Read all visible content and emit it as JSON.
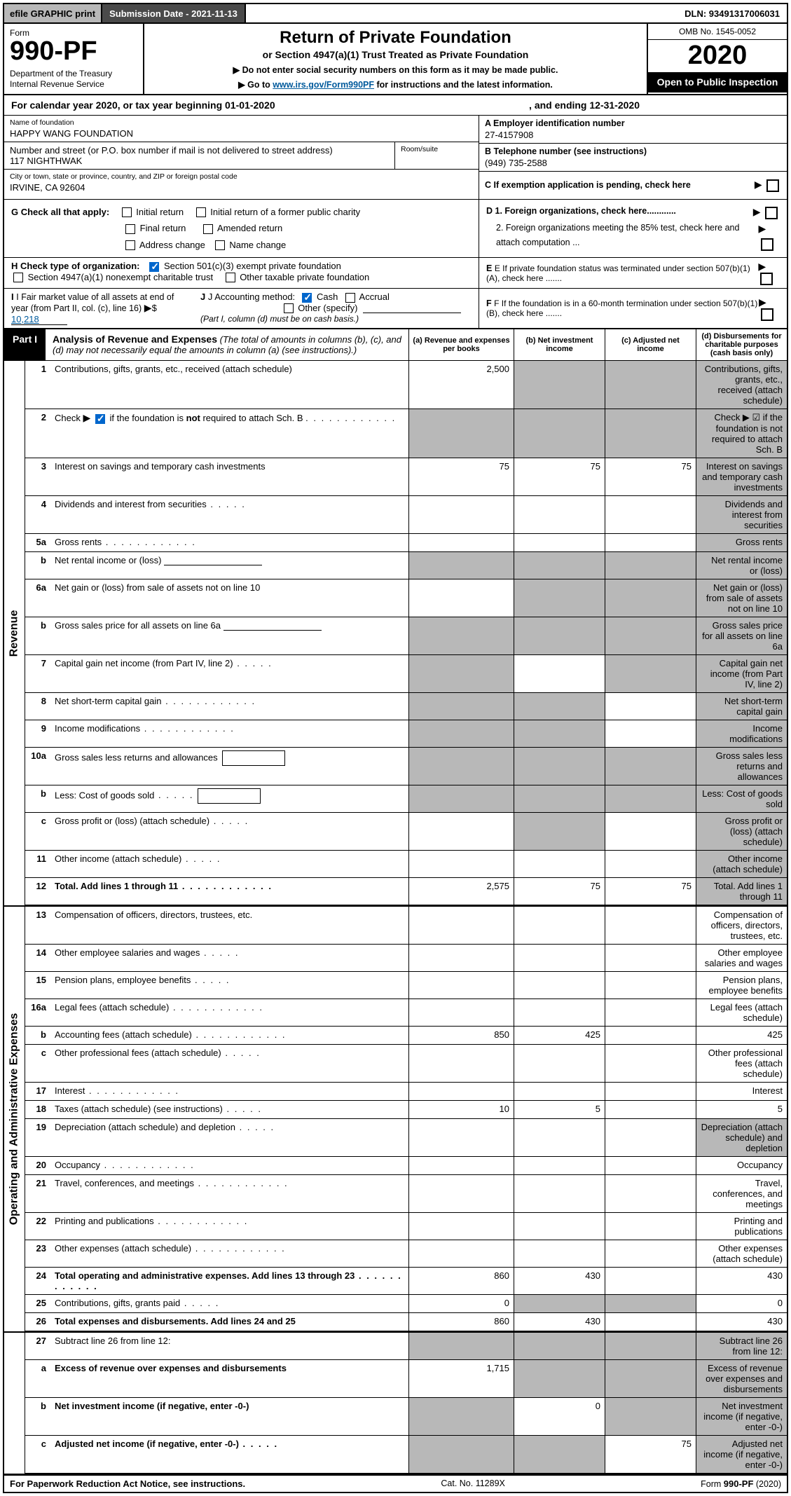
{
  "topbar": {
    "efile": "efile GRAPHIC print",
    "submission": "Submission Date - 2021-11-13",
    "dln": "DLN: 93491317006031"
  },
  "header": {
    "form_label": "Form",
    "form_num": "990-PF",
    "dept": "Department of the Treasury\nInternal Revenue Service",
    "title": "Return of Private Foundation",
    "subtitle": "or Section 4947(a)(1) Trust Treated as Private Foundation",
    "note1": "▶ Do not enter social security numbers on this form as it may be made public.",
    "note2_pre": "▶ Go to ",
    "note2_link": "www.irs.gov/Form990PF",
    "note2_post": " for instructions and the latest information.",
    "omb": "OMB No. 1545-0052",
    "year": "2020",
    "open": "Open to Public Inspection"
  },
  "calendar": {
    "pre": "For calendar year 2020, or tax year beginning 01-01-2020",
    "mid": ", and ending 12-31-2020"
  },
  "entity": {
    "name_label": "Name of foundation",
    "name": "HAPPY WANG FOUNDATION",
    "addr_label": "Number and street (or P.O. box number if mail is not delivered to street address)",
    "addr": "117 NIGHTHWAK",
    "room_label": "Room/suite",
    "city_label": "City or town, state or province, country, and ZIP or foreign postal code",
    "city": "IRVINE, CA  92604",
    "a_label": "A Employer identification number",
    "a_val": "27-4157908",
    "b_label": "B Telephone number (see instructions)",
    "b_val": "(949) 735-2588",
    "c_label": "C If exemption application is pending, check here"
  },
  "checks": {
    "g_label": "G Check all that apply:",
    "g_opts": [
      "Initial return",
      "Initial return of a former public charity",
      "Final return",
      "Amended return",
      "Address change",
      "Name change"
    ],
    "h_label": "H Check type of organization:",
    "h_opts": [
      "Section 501(c)(3) exempt private foundation",
      "Section 4947(a)(1) nonexempt charitable trust",
      "Other taxable private foundation"
    ],
    "i_label": "I Fair market value of all assets at end of year (from Part II, col. (c), line 16)",
    "i_val": "10,218",
    "j_label": "J Accounting method:",
    "j_opts": [
      "Cash",
      "Accrual",
      "Other (specify)"
    ],
    "j_note": "(Part I, column (d) must be on cash basis.)",
    "d1": "D 1. Foreign organizations, check here............",
    "d2": "2. Foreign organizations meeting the 85% test, check here and attach computation ...",
    "e": "E  If private foundation status was terminated under section 507(b)(1)(A), check here .......",
    "f": "F  If the foundation is in a 60-month termination under section 507(b)(1)(B), check here .......",
    "arrow": "▶"
  },
  "part1": {
    "badge": "Part I",
    "title": "Analysis of Revenue and Expenses",
    "title_note": " (The total of amounts in columns (b), (c), and (d) may not necessarily equal the amounts in column (a) (see instructions).)",
    "cols": {
      "a": "(a)  Revenue and expenses per books",
      "b": "(b)  Net investment income",
      "c": "(c)  Adjusted net income",
      "d": "(d)  Disbursements for charitable purposes (cash basis only)"
    }
  },
  "vlabels": {
    "rev": "Revenue",
    "exp": "Operating and Administrative Expenses"
  },
  "rows": [
    {
      "n": "1",
      "d": "Contributions, gifts, grants, etc., received (attach schedule)",
      "a": "2,500",
      "grey_bcd": true
    },
    {
      "n": "2",
      "d": "Check ▶ ☑ if the foundation is not required to attach Sch. B",
      "dots": true,
      "no_cells": true,
      "grey_all": true
    },
    {
      "n": "3",
      "d": "Interest on savings and temporary cash investments",
      "a": "75",
      "b": "75",
      "c": "75"
    },
    {
      "n": "4",
      "d": "Dividends and interest from securities",
      "dots": "short"
    },
    {
      "n": "5a",
      "d": "Gross rents",
      "dots": true
    },
    {
      "n": "b",
      "d": "Net rental income or (loss)",
      "line_after": true,
      "grey_all": true
    },
    {
      "n": "6a",
      "d": "Net gain or (loss) from sale of assets not on line 10",
      "grey_bcd": true
    },
    {
      "n": "b",
      "d": "Gross sales price for all assets on line 6a",
      "line_after": true,
      "grey_all": true
    },
    {
      "n": "7",
      "d": "Capital gain net income (from Part IV, line 2)",
      "dots": "short",
      "grey_a": true,
      "grey_cd": true
    },
    {
      "n": "8",
      "d": "Net short-term capital gain",
      "dots": true,
      "grey_ab": true,
      "grey_d": true
    },
    {
      "n": "9",
      "d": "Income modifications",
      "dots": true,
      "grey_ab": true,
      "grey_d": true
    },
    {
      "n": "10a",
      "d": "Gross sales less returns and allowances",
      "box_after": true,
      "grey_all": true
    },
    {
      "n": "b",
      "d": "Less: Cost of goods sold",
      "dots": "short",
      "box_after": true,
      "grey_all": true
    },
    {
      "n": "c",
      "d": "Gross profit or (loss) (attach schedule)",
      "dots": "short",
      "grey_b": true,
      "grey_d": true
    },
    {
      "n": "11",
      "d": "Other income (attach schedule)",
      "dots": "short",
      "grey_d": true
    },
    {
      "n": "12",
      "d": "Total. Add lines 1 through 11",
      "dots": true,
      "bold": true,
      "a": "2,575",
      "b": "75",
      "c": "75",
      "grey_d": true
    }
  ],
  "exp_rows": [
    {
      "n": "13",
      "d": "Compensation of officers, directors, trustees, etc."
    },
    {
      "n": "14",
      "d": "Other employee salaries and wages",
      "dots": "short"
    },
    {
      "n": "15",
      "d": "Pension plans, employee benefits",
      "dots": "short"
    },
    {
      "n": "16a",
      "d": "Legal fees (attach schedule)",
      "dots": true
    },
    {
      "n": "b",
      "d": "Accounting fees (attach schedule)",
      "dots": true,
      "a": "850",
      "b": "425",
      "dval": "425"
    },
    {
      "n": "c",
      "d": "Other professional fees (attach schedule)",
      "dots": "short"
    },
    {
      "n": "17",
      "d": "Interest",
      "dots": true
    },
    {
      "n": "18",
      "d": "Taxes (attach schedule) (see instructions)",
      "dots": "short",
      "a": "10",
      "b": "5",
      "dval": "5"
    },
    {
      "n": "19",
      "d": "Depreciation (attach schedule) and depletion",
      "dots": "short",
      "grey_d": true
    },
    {
      "n": "20",
      "d": "Occupancy",
      "dots": true
    },
    {
      "n": "21",
      "d": "Travel, conferences, and meetings",
      "dots": true
    },
    {
      "n": "22",
      "d": "Printing and publications",
      "dots": true
    },
    {
      "n": "23",
      "d": "Other expenses (attach schedule)",
      "dots": true
    },
    {
      "n": "24",
      "d": "Total operating and administrative expenses. Add lines 13 through 23",
      "dots": true,
      "bold": true,
      "a": "860",
      "b": "430",
      "dval": "430"
    },
    {
      "n": "25",
      "d": "Contributions, gifts, grants paid",
      "dots": "short",
      "a": "0",
      "grey_bc": true,
      "dval": "0"
    },
    {
      "n": "26",
      "d": "Total expenses and disbursements. Add lines 24 and 25",
      "bold": true,
      "a": "860",
      "b": "430",
      "dval": "430"
    }
  ],
  "net_rows": [
    {
      "n": "27",
      "d": "Subtract line 26 from line 12:",
      "grey_all": true
    },
    {
      "n": "a",
      "d": "Excess of revenue over expenses and disbursements",
      "bold": true,
      "a": "1,715",
      "grey_bcd": true
    },
    {
      "n": "b",
      "d": "Net investment income (if negative, enter -0-)",
      "bold": true,
      "grey_a": true,
      "b": "0",
      "grey_cd": true
    },
    {
      "n": "c",
      "d": "Adjusted net income (if negative, enter -0-)",
      "bold": true,
      "dots": "short",
      "grey_ab": true,
      "c": "75",
      "grey_d": true
    }
  ],
  "footer": {
    "left": "For Paperwork Reduction Act Notice, see instructions.",
    "mid": "Cat. No. 11289X",
    "right_pre": "Form ",
    "right_b": "990-PF",
    "right_post": " (2020)"
  },
  "colors": {
    "grey": "#b8b8b8",
    "darkgrey": "#4a4a4a",
    "link": "#005a9c",
    "check_blue": "#0066cc"
  }
}
